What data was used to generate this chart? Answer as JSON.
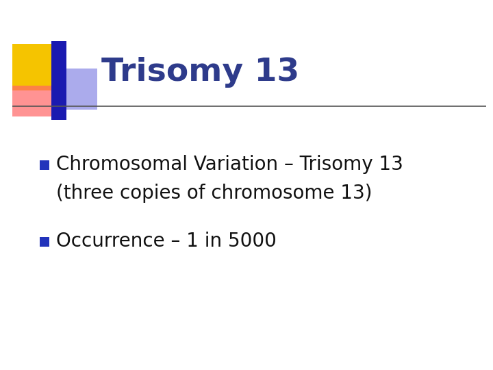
{
  "title": "Trisomy 13",
  "title_color": "#2E3B8B",
  "title_fontsize": 34,
  "bullet1_line1": "Chromosomal Variation – Trisomy 13",
  "bullet1_line2": "(three copies of chromosome 13)",
  "bullet2": "Occurrence – 1 in 5000",
  "bullet_fontsize": 20,
  "bullet_color": "#111111",
  "bullet_marker_color": "#2233BB",
  "background_color": "#FFFFFF",
  "separator_color": "#555555",
  "deco_yellow": "#F5C400",
  "deco_red_start": "#FF6666",
  "deco_red_end": "#FF2222",
  "deco_blue_dark": "#1A1AB0",
  "deco_blue_light": "#6666DD",
  "fig_width": 7.2,
  "fig_height": 5.4,
  "dpi": 100
}
